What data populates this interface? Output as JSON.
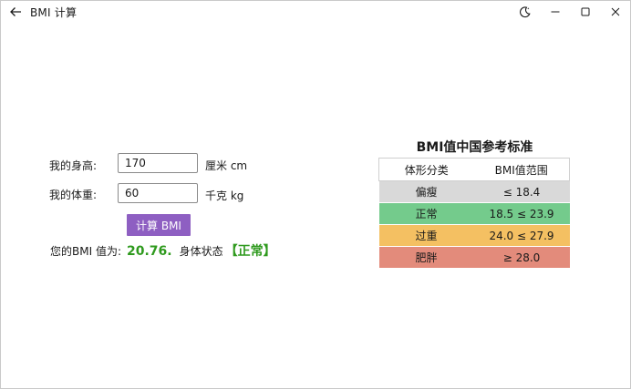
{
  "window": {
    "title": "BMI 计算"
  },
  "titlebar": {
    "back_icon": "arrow-left-icon",
    "theme_icon": "moon-icon",
    "minimize_icon": "minimize-icon",
    "maximize_icon": "maximize-icon",
    "close_icon": "close-icon"
  },
  "form": {
    "height_label": "我的身高:",
    "height_value": "170",
    "height_unit": "厘米 cm",
    "weight_label": "我的体重:",
    "weight_value": "60",
    "weight_unit": "千克 kg",
    "calc_button": "计算 BMI"
  },
  "result": {
    "prefix": "您的BMI 值为:",
    "value": "20.76",
    "dot": ".",
    "status_label": "身体状态",
    "status": "【正常】",
    "color": "#2f9a1e"
  },
  "reference": {
    "title": "BMI值中国参考标准",
    "headers": [
      "体形分类",
      "BMI值范围"
    ],
    "rows": [
      {
        "category": "偏瘦",
        "range": "≤ 18.4",
        "color": "#d9d9d9"
      },
      {
        "category": "正常",
        "range": "18.5 ≤ 23.9",
        "color": "#74cb8c"
      },
      {
        "category": "过重",
        "range": "24.0 ≤ 27.9",
        "color": "#f4c062"
      },
      {
        "category": "肥胖",
        "range": "≥ 28.0",
        "color": "#e38b7b"
      }
    ]
  },
  "colors": {
    "accent_button": "#8e5fc2"
  }
}
